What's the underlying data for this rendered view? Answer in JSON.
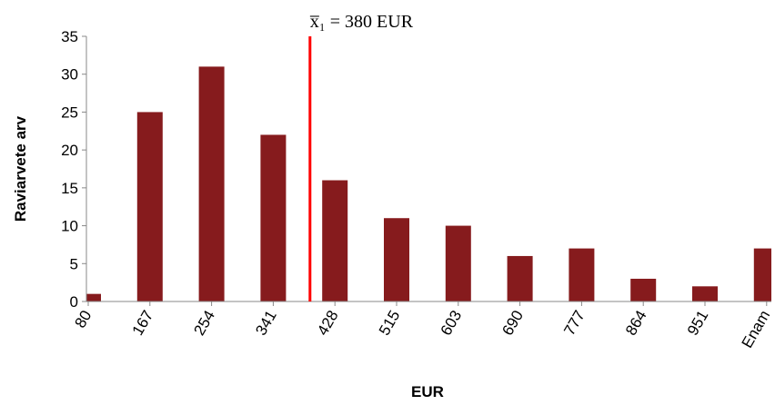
{
  "chart_data": {
    "type": "bar",
    "categories": [
      "80",
      "167",
      "254",
      "341",
      "428",
      "515",
      "603",
      "690",
      "777",
      "864",
      "951",
      "Enam"
    ],
    "values": [
      1,
      25,
      31,
      22,
      16,
      11,
      10,
      6,
      7,
      3,
      2,
      7
    ],
    "color": "#861b1d",
    "ylim": [
      0,
      35
    ],
    "yticks": [
      0,
      5,
      10,
      15,
      20,
      25,
      30,
      35
    ],
    "ylabel": "Raviarvete arv",
    "xlabel": "EUR",
    "mean_line": {
      "value": 380,
      "label": "x̅₁ = 380 EUR",
      "color": "#ff0000"
    },
    "grid": false
  }
}
